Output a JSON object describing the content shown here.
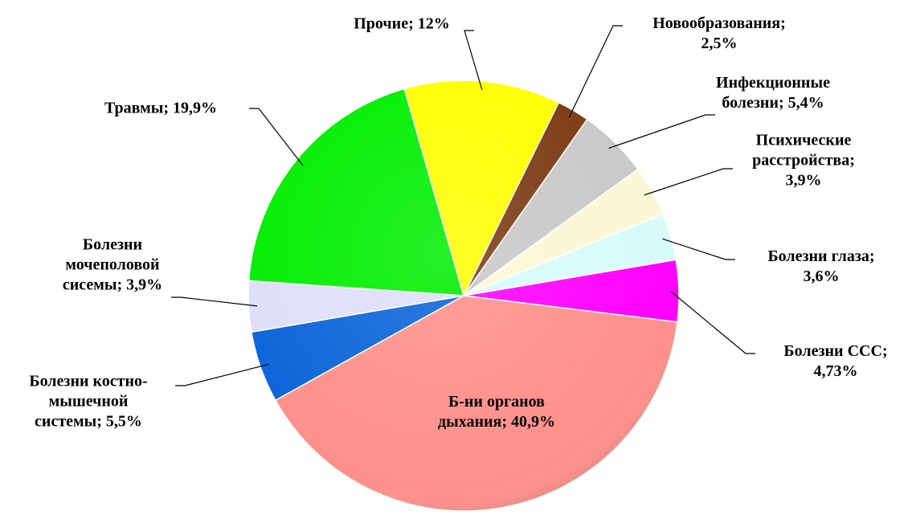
{
  "chart_data": {
    "type": "pie",
    "values": [
      12,
      2.5,
      5.4,
      3.9,
      3.6,
      4.73,
      40.9,
      5.5,
      3.9,
      19.9
    ],
    "value_labels": [
      "Прочие; 12%",
      "Новообразования; 2,5%",
      "Инфекционные болезни; 5,4%",
      "Психические расстройства; 3,9%",
      "Болезни глаза; 3,6%",
      "Болезни ССС; 4,73%",
      "Б-ни органов дыхания; 40,9%",
      "Болезни костно-мышечной системы; 5,5%",
      "Болезни мочеполовой сисемы; 3,9%",
      "Травмы; 19,9%"
    ],
    "colors": [
      "#ffff00",
      "#7a3a12",
      "#c8c8c8",
      "#fbf8d4",
      "#d6fbfb",
      "#ff00ff",
      "#ff8f8a",
      "#0a64d8",
      "#dedefa",
      "#00ee00"
    ]
  }
}
